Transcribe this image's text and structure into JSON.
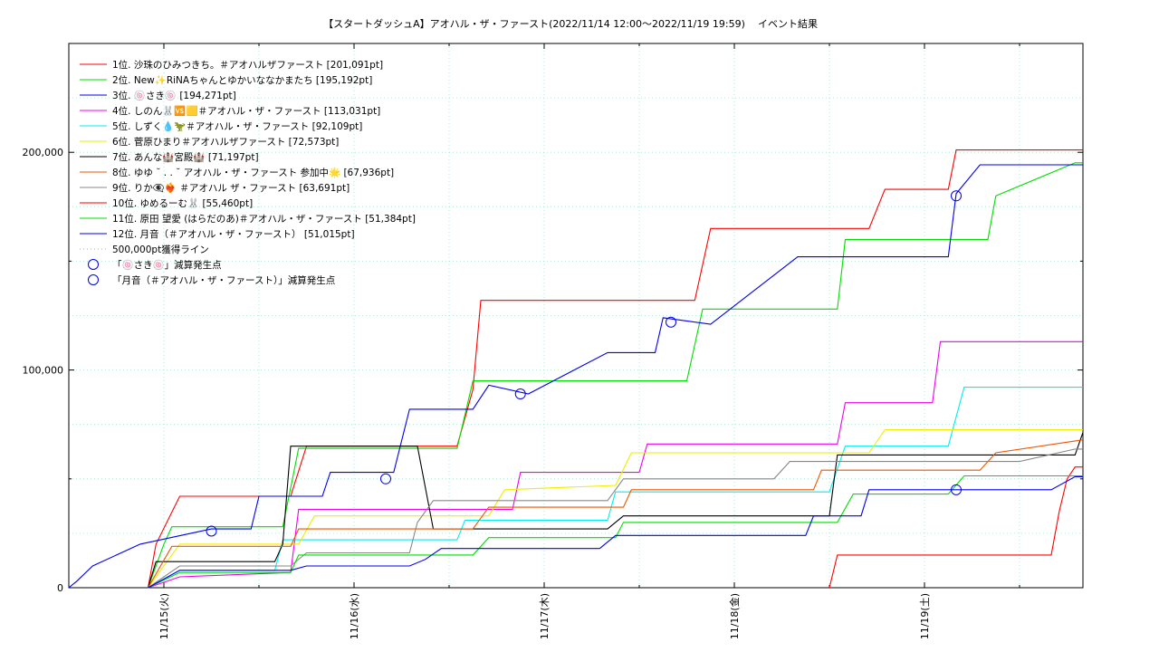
{
  "chart_data": {
    "type": "line",
    "title": "【スタートダッシュA】アオハル・ザ・ファースト(2022/11/14 12:00〜2022/11/19 19:59)",
    "subtitle": "イベント結果",
    "xlabel": "",
    "ylabel": "",
    "x_tick_labels": [
      "11/15(火)",
      "11/16(水)",
      "11/17(木)",
      "11/18(金)",
      "11/19(土)"
    ],
    "y_tick_labels": [
      "0",
      "100,000",
      "200,000"
    ],
    "x_range": [
      "2022-11-14 12:00",
      "2022-11-19 20:00"
    ],
    "ylim": [
      0,
      250000
    ],
    "grid": true,
    "legend_position": "top-left",
    "series": [
      {
        "name": "1位. 沙珠のひみつきち。＃アオハルザファースト [201,091pt]",
        "color": "#ff0000",
        "points": [
          [
            "2022-11-14 22:00",
            0
          ],
          [
            "2022-11-14 23:00",
            20000
          ],
          [
            "2022-11-15 02:00",
            42000
          ],
          [
            "2022-11-15 16:00",
            42000
          ],
          [
            "2022-11-15 18:00",
            65000
          ],
          [
            "2022-11-16 13:00",
            65000
          ],
          [
            "2022-11-16 15:00",
            91000
          ],
          [
            "2022-11-16 16:00",
            132000
          ],
          [
            "2022-11-17 19:00",
            132000
          ],
          [
            "2022-11-17 21:00",
            165000
          ],
          [
            "2022-11-18 17:00",
            165000
          ],
          [
            "2022-11-18 19:00",
            183000
          ],
          [
            "2022-11-19 03:00",
            183000
          ],
          [
            "2022-11-19 04:00",
            201091
          ],
          [
            "2022-11-19 19:59",
            201091
          ]
        ]
      },
      {
        "name": "2位. New✨RiNAちゃんとゆかいななかまたち [195,192pt]",
        "color": "#00dd00",
        "points": [
          [
            "2022-11-14 22:00",
            0
          ],
          [
            "2022-11-15 00:00",
            20000
          ],
          [
            "2022-11-15 01:00",
            28000
          ],
          [
            "2022-11-15 15:00",
            28000
          ],
          [
            "2022-11-15 17:00",
            64000
          ],
          [
            "2022-11-16 13:00",
            64000
          ],
          [
            "2022-11-16 15:00",
            95000
          ],
          [
            "2022-11-17 18:00",
            95000
          ],
          [
            "2022-11-17 20:00",
            128000
          ],
          [
            "2022-11-18 13:00",
            128000
          ],
          [
            "2022-11-18 14:00",
            160000
          ],
          [
            "2022-11-19 08:00",
            160000
          ],
          [
            "2022-11-19 09:00",
            180000
          ],
          [
            "2022-11-19 19:00",
            195192
          ],
          [
            "2022-11-19 19:59",
            195192
          ]
        ]
      },
      {
        "name": "3位. 🍥さき🍥 [194,271pt]",
        "color": "#0000ee",
        "points": [
          [
            "2022-11-14 12:00",
            0
          ],
          [
            "2022-11-14 13:00",
            3000
          ],
          [
            "2022-11-14 15:00",
            10000
          ],
          [
            "2022-11-14 21:00",
            20000
          ],
          [
            "2022-11-15 06:00",
            27000
          ],
          [
            "2022-11-15 11:00",
            27000
          ],
          [
            "2022-11-15 12:00",
            42000
          ],
          [
            "2022-11-15 20:00",
            42000
          ],
          [
            "2022-11-15 21:00",
            53000
          ],
          [
            "2022-11-16 05:00",
            53000
          ],
          [
            "2022-11-16 07:00",
            82000
          ],
          [
            "2022-11-16 15:00",
            82000
          ],
          [
            "2022-11-16 17:00",
            93000
          ],
          [
            "2022-11-16 22:00",
            89000
          ],
          [
            "2022-11-17 08:00",
            108000
          ],
          [
            "2022-11-17 14:00",
            108000
          ],
          [
            "2022-11-17 15:00",
            124000
          ],
          [
            "2022-11-17 21:00",
            121000
          ],
          [
            "2022-11-18 08:00",
            152000
          ],
          [
            "2022-11-19 03:00",
            152000
          ],
          [
            "2022-11-19 04:00",
            181000
          ],
          [
            "2022-11-19 07:00",
            194271
          ],
          [
            "2022-11-19 19:59",
            194271
          ]
        ]
      },
      {
        "name": "4位. しのん🐰🆚🟨＃アオハル・ザ・ファースト [113,031pt]",
        "color": "#ee00ee",
        "points": [
          [
            "2022-11-14 22:00",
            0
          ],
          [
            "2022-11-15 02:00",
            5000
          ],
          [
            "2022-11-15 16:00",
            7000
          ],
          [
            "2022-11-15 17:00",
            36000
          ],
          [
            "2022-11-16 20:00",
            36000
          ],
          [
            "2022-11-16 21:00",
            53000
          ],
          [
            "2022-11-17 12:00",
            53000
          ],
          [
            "2022-11-17 13:00",
            66000
          ],
          [
            "2022-11-18 13:00",
            66000
          ],
          [
            "2022-11-18 14:00",
            85000
          ],
          [
            "2022-11-19 01:00",
            85000
          ],
          [
            "2022-11-19 02:00",
            113031
          ],
          [
            "2022-11-19 19:59",
            113031
          ]
        ]
      },
      {
        "name": "5位. しずく💧🦖＃アオハル・ザ・ファースト [92,109pt]",
        "color": "#00eeee",
        "points": [
          [
            "2022-11-14 22:00",
            0
          ],
          [
            "2022-11-15 02:00",
            8000
          ],
          [
            "2022-11-15 14:00",
            8000
          ],
          [
            "2022-11-15 15:00",
            22000
          ],
          [
            "2022-11-16 13:00",
            22000
          ],
          [
            "2022-11-16 14:00",
            31000
          ],
          [
            "2022-11-17 08:00",
            31000
          ],
          [
            "2022-11-17 09:00",
            44000
          ],
          [
            "2022-11-18 12:00",
            44000
          ],
          [
            "2022-11-18 14:00",
            65000
          ],
          [
            "2022-11-19 03:00",
            65000
          ],
          [
            "2022-11-19 05:00",
            92109
          ],
          [
            "2022-11-19 19:59",
            92109
          ]
        ]
      },
      {
        "name": "6位. 菅原ひまり＃アオハルザファースト [72,573pt]",
        "color": "#eeee00",
        "points": [
          [
            "2022-11-14 22:00",
            0
          ],
          [
            "2022-11-15 02:00",
            20000
          ],
          [
            "2022-11-15 17:00",
            20000
          ],
          [
            "2022-11-15 19:00",
            33000
          ],
          [
            "2022-11-16 17:00",
            33000
          ],
          [
            "2022-11-16 19:00",
            45000
          ],
          [
            "2022-11-17 09:00",
            47000
          ],
          [
            "2022-11-17 11:00",
            62000
          ],
          [
            "2022-11-18 17:00",
            62000
          ],
          [
            "2022-11-18 19:00",
            72573
          ],
          [
            "2022-11-19 19:59",
            72573
          ]
        ]
      },
      {
        "name": "7位. あんな🏰宮殿🏰 [71,197pt]",
        "color": "#000000",
        "points": [
          [
            "2022-11-14 22:00",
            0
          ],
          [
            "2022-11-14 23:00",
            12000
          ],
          [
            "2022-11-15 14:00",
            12000
          ],
          [
            "2022-11-15 15:00",
            20000
          ],
          [
            "2022-11-15 16:00",
            65000
          ],
          [
            "2022-11-16 08:00",
            65000
          ],
          [
            "2022-11-16 10:00",
            27000
          ],
          [
            "2022-11-17 08:00",
            27000
          ],
          [
            "2022-11-17 10:00",
            33000
          ],
          [
            "2022-11-18 12:00",
            33000
          ],
          [
            "2022-11-18 13:00",
            61000
          ],
          [
            "2022-11-19 19:00",
            61000
          ],
          [
            "2022-11-19 19:59",
            71197
          ]
        ]
      },
      {
        "name": "8位. ゆゆ ˘ . . ˘ アオハル・ザ・ファースト 参加中🌟 [67,936pt]",
        "color": "#ee5500",
        "points": [
          [
            "2022-11-14 22:00",
            0
          ],
          [
            "2022-11-15 01:00",
            19000
          ],
          [
            "2022-11-15 16:00",
            19000
          ],
          [
            "2022-11-15 17:00",
            27000
          ],
          [
            "2022-11-16 15:00",
            27000
          ],
          [
            "2022-11-16 17:00",
            37000
          ],
          [
            "2022-11-17 10:00",
            37000
          ],
          [
            "2022-11-17 11:00",
            45000
          ],
          [
            "2022-11-18 10:00",
            45000
          ],
          [
            "2022-11-18 11:00",
            54000
          ],
          [
            "2022-11-19 07:00",
            54000
          ],
          [
            "2022-11-19 09:00",
            62000
          ],
          [
            "2022-11-19 19:59",
            67936
          ]
        ]
      },
      {
        "name": "9位. りか👁️‍🗨️❤️‍🔥 ＃アオハル ザ・ファースト [63,691pt]",
        "color": "#888888",
        "points": [
          [
            "2022-11-14 22:00",
            0
          ],
          [
            "2022-11-15 02:00",
            10000
          ],
          [
            "2022-11-15 16:00",
            10000
          ],
          [
            "2022-11-15 18:00",
            16000
          ],
          [
            "2022-11-16 07:00",
            16000
          ],
          [
            "2022-11-16 08:00",
            30000
          ],
          [
            "2022-11-16 10:00",
            40000
          ],
          [
            "2022-11-17 08:00",
            40000
          ],
          [
            "2022-11-17 10:00",
            50000
          ],
          [
            "2022-11-18 05:00",
            50000
          ],
          [
            "2022-11-18 07:00",
            58000
          ],
          [
            "2022-11-19 12:00",
            58000
          ],
          [
            "2022-11-19 19:00",
            63691
          ],
          [
            "2022-11-19 19:59",
            63691
          ]
        ]
      },
      {
        "name": "10位. ゆめるーむ🐰 [55,460pt]",
        "color": "#ff0000",
        "points": [
          [
            "2022-11-18 12:00",
            0
          ],
          [
            "2022-11-18 13:00",
            15000
          ],
          [
            "2022-11-19 16:00",
            15000
          ],
          [
            "2022-11-19 17:00",
            35000
          ],
          [
            "2022-11-19 18:00",
            50000
          ],
          [
            "2022-11-19 19:00",
            55460
          ],
          [
            "2022-11-19 19:59",
            55460
          ]
        ]
      },
      {
        "name": "11位. 原田 望愛 (はらだのあ)＃アオハル・ザ・ファースト [51,384pt]",
        "color": "#00dd00",
        "points": [
          [
            "2022-11-14 22:00",
            0
          ],
          [
            "2022-11-15 02:00",
            7000
          ],
          [
            "2022-11-15 16:00",
            7000
          ],
          [
            "2022-11-15 17:00",
            15000
          ],
          [
            "2022-11-16 15:00",
            15000
          ],
          [
            "2022-11-16 17:00",
            23000
          ],
          [
            "2022-11-17 09:00",
            23000
          ],
          [
            "2022-11-17 10:00",
            30000
          ],
          [
            "2022-11-18 13:00",
            30000
          ],
          [
            "2022-11-18 15:00",
            43000
          ],
          [
            "2022-11-19 03:00",
            43000
          ],
          [
            "2022-11-19 05:00",
            51384
          ],
          [
            "2022-11-19 19:59",
            51384
          ]
        ]
      },
      {
        "name": "12位. 月音（＃アオハル・ザ・ファースト） [51,015pt]",
        "color": "#0000ee",
        "points": [
          [
            "2022-11-14 22:00",
            0
          ],
          [
            "2022-11-15 02:00",
            8000
          ],
          [
            "2022-11-15 16:00",
            8000
          ],
          [
            "2022-11-15 18:00",
            10000
          ],
          [
            "2022-11-16 07:00",
            10000
          ],
          [
            "2022-11-16 09:00",
            13000
          ],
          [
            "2022-11-16 11:00",
            18000
          ],
          [
            "2022-11-17 07:00",
            18000
          ],
          [
            "2022-11-17 09:00",
            24000
          ],
          [
            "2022-11-18 09:00",
            24000
          ],
          [
            "2022-11-18 10:00",
            33000
          ],
          [
            "2022-11-18 16:00",
            33000
          ],
          [
            "2022-11-18 17:00",
            45000
          ],
          [
            "2022-11-19 03:00",
            45000
          ],
          [
            "2022-11-19 16:00",
            45000
          ],
          [
            "2022-11-19 19:00",
            51015
          ],
          [
            "2022-11-19 19:59",
            51015
          ]
        ]
      }
    ],
    "reference_line": {
      "name": "500,000pt獲得ライン",
      "value": 500000,
      "color": "#b0b0b0"
    },
    "markers": [
      {
        "name": "「🍥さき🍥」減算発生点",
        "color": "#0000ee",
        "points": [
          [
            "2022-11-16 21:00",
            89000
          ],
          [
            "2022-11-17 16:00",
            122000
          ],
          [
            "2022-11-19 04:00",
            180000
          ]
        ]
      },
      {
        "name": "「月音（＃アオハル・ザ・ファースト）」減算発生点",
        "color": "#0000ee",
        "points": [
          [
            "2022-11-15 06:00",
            26000
          ],
          [
            "2022-11-16 04:00",
            50000
          ],
          [
            "2022-11-19 04:00",
            45000
          ]
        ]
      }
    ]
  }
}
